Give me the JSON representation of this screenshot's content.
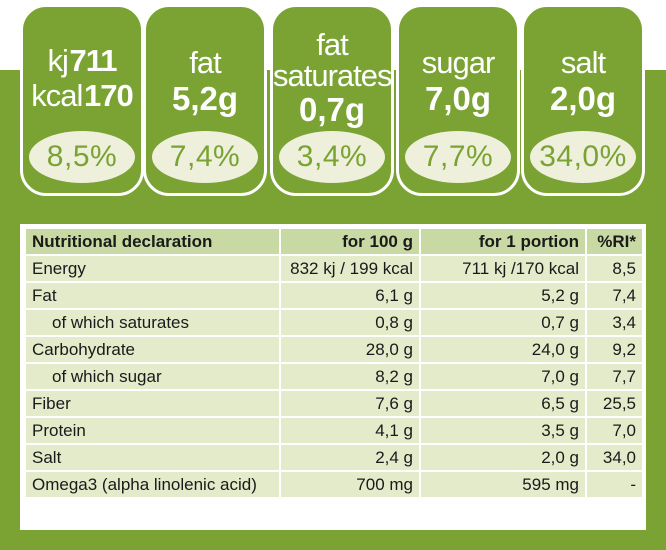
{
  "panels": [
    {
      "l1_a": "kj",
      "l1_b": "711",
      "l2_a": "kcal",
      "l2_b": "170",
      "pct": "8,5%"
    },
    {
      "label": "fat",
      "value": "5,2g",
      "pct": "7,4%"
    },
    {
      "label1": "fat",
      "label2": "saturates",
      "value": "0,7g",
      "pct": "3,4%"
    },
    {
      "label": "sugar",
      "value": "7,0g",
      "pct": "7,7%"
    },
    {
      "label": "salt",
      "value": "2,0g",
      "pct": "34,0%"
    }
  ],
  "table": {
    "headers": [
      "Nutritional declaration",
      "for 100 g",
      "for 1 portion",
      "%RI*"
    ],
    "rows": [
      [
        "Energy",
        "832 kj  / 199 kcal",
        "711 kj  /170 kcal",
        "8,5"
      ],
      [
        "Fat",
        "6,1 g",
        "5,2 g",
        "7,4"
      ],
      [
        "of which saturates",
        "0,8 g",
        "0,7 g",
        "3,4"
      ],
      [
        "Carbohydrate",
        "28,0 g",
        "24,0 g",
        "9,2"
      ],
      [
        "of which sugar",
        "8,2 g",
        "7,0 g",
        "7,7"
      ],
      [
        "Fiber",
        "7,6 g",
        "6,5 g",
        "25,5"
      ],
      [
        "Protein",
        "4,1 g",
        "3,5 g",
        "7,0"
      ],
      [
        "Salt",
        "2,4 g",
        "2,0 g",
        "34,0"
      ],
      [
        "Omega3 (alpha linolenic acid)",
        "700 mg",
        "595 mg",
        "-"
      ]
    ]
  },
  "colors": {
    "green": "#7aa334",
    "cell": "#e3ebca",
    "header": "#c8d9a4",
    "oval": "#eef0dc"
  }
}
